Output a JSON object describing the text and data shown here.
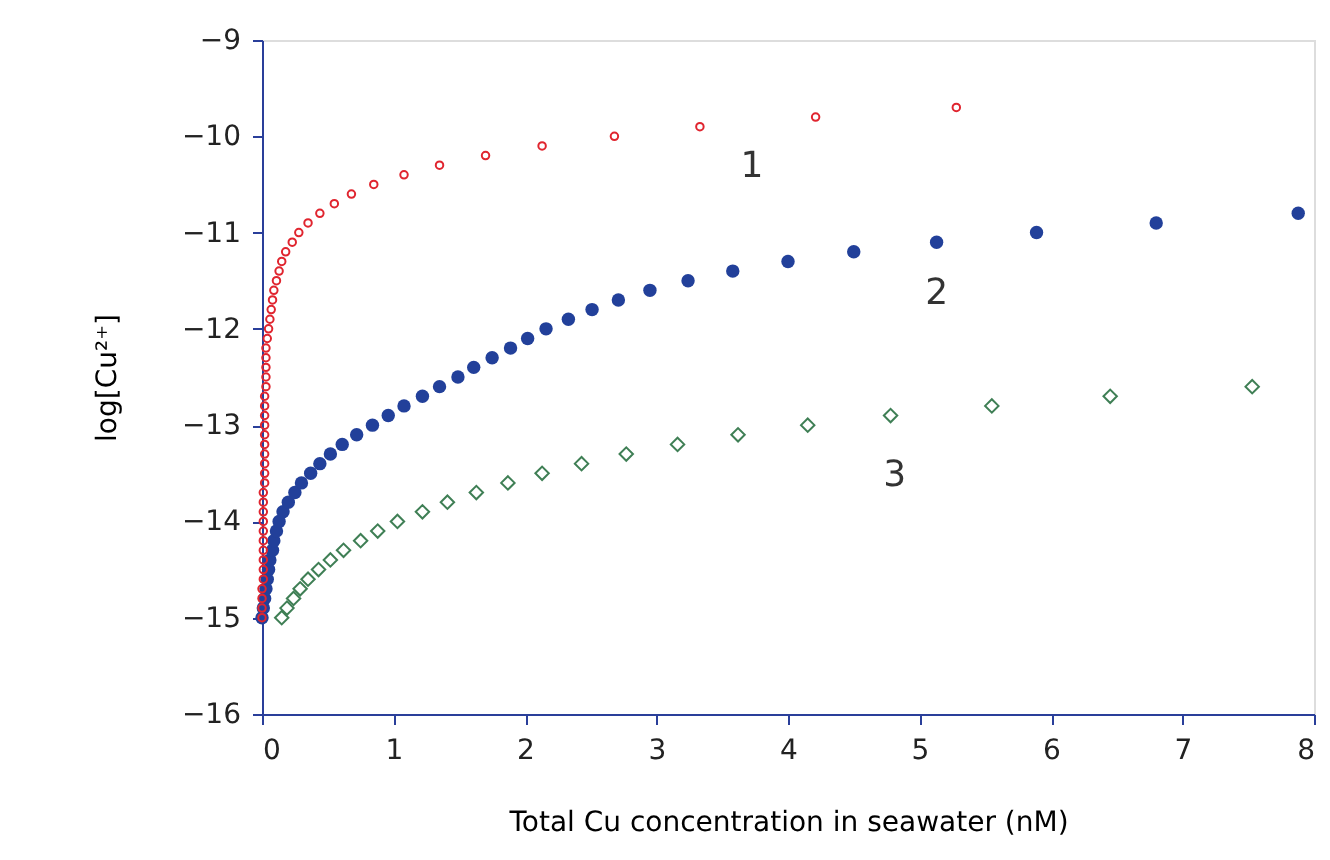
{
  "chart_data": {
    "type": "scatter",
    "xlabel": "Total Cu concentration in seawater (nM)",
    "ylabel": "log[Cu²⁺]",
    "xlim": [
      0,
      8
    ],
    "xticks": [
      0,
      1,
      2,
      3,
      4,
      5,
      6,
      7,
      8
    ],
    "ylim": [
      -16,
      -9
    ],
    "yticks": [
      -16,
      -15,
      -14,
      -13,
      -12,
      -11,
      -10,
      -9
    ],
    "grid": false,
    "series": [
      {
        "name": "1",
        "color": "#e0252f",
        "marker": "circle",
        "x": [
          0,
          0,
          0,
          0,
          0.01,
          0.01,
          0.01,
          0.01,
          0.01,
          0.01,
          0.01,
          0.01,
          0.01,
          0.01,
          0.02,
          0.02,
          0.02,
          0.02,
          0.02,
          0.02,
          0.02,
          0.02,
          0.02,
          0.02,
          0.03,
          0.03,
          0.03,
          0.03,
          0.03,
          0.04,
          0.05,
          0.06,
          0.07,
          0.08,
          0.09,
          0.11,
          0.13,
          0.15,
          0.18,
          0.23,
          0.28,
          0.35,
          0.44,
          0.55,
          0.68,
          0.85,
          1.08,
          1.35,
          1.7,
          2.13,
          2.68,
          3.33,
          4.21,
          5.28
        ],
        "values": [
          -15.0,
          -14.9,
          -14.8,
          -14.7,
          -14.6,
          -14.5,
          -14.4,
          -14.3,
          -14.2,
          -14.1,
          -14.0,
          -13.9,
          -13.8,
          -13.7,
          -13.6,
          -13.5,
          -13.4,
          -13.3,
          -13.2,
          -13.1,
          -13.0,
          -12.9,
          -12.8,
          -12.7,
          -12.6,
          -12.5,
          -12.4,
          -12.3,
          -12.2,
          -12.1,
          -12.0,
          -11.9,
          -11.8,
          -11.7,
          -11.6,
          -11.5,
          -11.4,
          -11.3,
          -11.2,
          -11.1,
          -11.0,
          -10.9,
          -10.8,
          -10.7,
          -10.6,
          -10.5,
          -10.4,
          -10.3,
          -10.2,
          -10.1,
          -10.0,
          -9.9,
          -9.8,
          -9.7
        ]
      },
      {
        "name": "2",
        "color": "#22409a",
        "marker": "circle",
        "x": [
          0.0,
          0.01,
          0.02,
          0.03,
          0.04,
          0.05,
          0.06,
          0.08,
          0.09,
          0.11,
          0.13,
          0.16,
          0.2,
          0.25,
          0.3,
          0.37,
          0.44,
          0.52,
          0.61,
          0.72,
          0.84,
          0.96,
          1.08,
          1.22,
          1.35,
          1.49,
          1.61,
          1.75,
          1.89,
          2.02,
          2.16,
          2.33,
          2.51,
          2.71,
          2.95,
          3.24,
          3.58,
          4.0,
          4.5,
          5.13,
          5.89,
          6.8,
          7.88
        ],
        "values": [
          -15.0,
          -14.9,
          -14.8,
          -14.7,
          -14.6,
          -14.5,
          -14.4,
          -14.3,
          -14.2,
          -14.1,
          -14.0,
          -13.9,
          -13.8,
          -13.7,
          -13.6,
          -13.5,
          -13.4,
          -13.3,
          -13.2,
          -13.1,
          -13.0,
          -12.9,
          -12.8,
          -12.7,
          -12.6,
          -12.5,
          -12.4,
          -12.3,
          -12.2,
          -12.1,
          -12.0,
          -11.9,
          -11.8,
          -11.7,
          -11.6,
          -11.5,
          -11.4,
          -11.3,
          -11.2,
          -11.1,
          -11.0,
          -10.9,
          -10.8
        ]
      },
      {
        "name": "3",
        "color": "#3f7f55",
        "marker": "diamond",
        "x": [
          0.15,
          0.19,
          0.24,
          0.29,
          0.35,
          0.43,
          0.52,
          0.62,
          0.75,
          0.88,
          1.03,
          1.22,
          1.41,
          1.63,
          1.87,
          2.13,
          2.43,
          2.77,
          3.16,
          3.62,
          4.15,
          4.78,
          5.55,
          6.45,
          7.53
        ],
        "values": [
          -15.0,
          -14.9,
          -14.8,
          -14.7,
          -14.6,
          -14.5,
          -14.4,
          -14.3,
          -14.2,
          -14.1,
          -14.0,
          -13.9,
          -13.8,
          -13.7,
          -13.6,
          -13.5,
          -13.4,
          -13.3,
          -13.2,
          -13.1,
          -13.0,
          -12.9,
          -12.8,
          -12.7,
          -12.6
        ]
      }
    ]
  }
}
